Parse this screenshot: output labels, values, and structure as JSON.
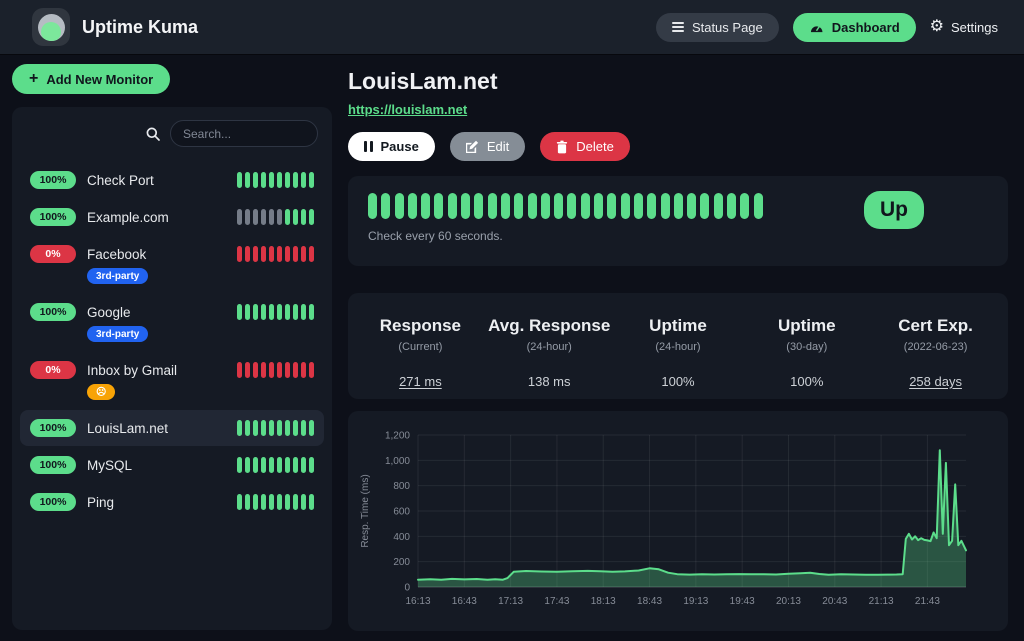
{
  "navbar": {
    "brand": "Uptime Kuma",
    "buttons": {
      "status_page": "Status Page",
      "dashboard": "Dashboard",
      "settings": "Settings"
    }
  },
  "sidebar": {
    "add_monitor": "Add New Monitor",
    "search_placeholder": "Search...",
    "monitors": [
      {
        "name": "Check Port",
        "uptime": "100%",
        "status": "up",
        "selected": false,
        "tags": [],
        "bars": [
          "up",
          "up",
          "up",
          "up",
          "up",
          "up",
          "up",
          "up",
          "up",
          "up"
        ]
      },
      {
        "name": "Example.com",
        "uptime": "100%",
        "status": "up",
        "selected": false,
        "tags": [],
        "bars": [
          "empty",
          "empty",
          "empty",
          "empty",
          "empty",
          "empty",
          "up",
          "up",
          "up",
          "up"
        ]
      },
      {
        "name": "Facebook",
        "uptime": "0%",
        "status": "down",
        "selected": false,
        "tags": [
          {
            "label": "3rd-party",
            "color": "#2163f0",
            "name": "third-party-tag"
          }
        ],
        "bars": [
          "down",
          "down",
          "down",
          "down",
          "down",
          "down",
          "down",
          "down",
          "down",
          "down"
        ]
      },
      {
        "name": "Google",
        "uptime": "100%",
        "status": "up",
        "selected": false,
        "tags": [
          {
            "label": "3rd-party",
            "color": "#2163f0",
            "name": "third-party-tag"
          }
        ],
        "bars": [
          "up",
          "up",
          "up",
          "up",
          "up",
          "up",
          "up",
          "up",
          "up",
          "up"
        ]
      },
      {
        "name": "Inbox by Gmail",
        "uptime": "0%",
        "status": "down",
        "selected": false,
        "tags": [
          {
            "label": "☹",
            "color": "#f8a306",
            "name": "crying-face-emoji-tag"
          }
        ],
        "bars": [
          "down",
          "down",
          "down",
          "down",
          "down",
          "down",
          "down",
          "down",
          "down",
          "down"
        ]
      },
      {
        "name": "LouisLam.net",
        "uptime": "100%",
        "status": "up",
        "selected": true,
        "tags": [],
        "bars": [
          "up",
          "up",
          "up",
          "up",
          "up",
          "up",
          "up",
          "up",
          "up",
          "up"
        ]
      },
      {
        "name": "MySQL",
        "uptime": "100%",
        "status": "up",
        "selected": false,
        "tags": [],
        "bars": [
          "up",
          "up",
          "up",
          "up",
          "up",
          "up",
          "up",
          "up",
          "up",
          "up"
        ]
      },
      {
        "name": "Ping",
        "uptime": "100%",
        "status": "up",
        "selected": false,
        "tags": [],
        "bars": [
          "up",
          "up",
          "up",
          "up",
          "up",
          "up",
          "up",
          "up",
          "up",
          "up"
        ]
      }
    ]
  },
  "detail": {
    "title": "LouisLam.net",
    "url": "https://louislam.net",
    "actions": {
      "pause": "Pause",
      "edit": "Edit",
      "delete": "Delete"
    },
    "heartbeat": {
      "bar_count": 30,
      "status": "up",
      "note": "Check every 60 seconds.",
      "status_badge": "Up"
    },
    "stats": [
      {
        "title": "Response",
        "subtitle": "(Current)",
        "value": "271 ms",
        "underlined": true
      },
      {
        "title": "Avg. Response",
        "subtitle": "(24-hour)",
        "value": "138 ms",
        "underlined": false
      },
      {
        "title": "Uptime",
        "subtitle": "(24-hour)",
        "value": "100%",
        "underlined": false
      },
      {
        "title": "Uptime",
        "subtitle": "(30-day)",
        "value": "100%",
        "underlined": false
      },
      {
        "title": "Cert Exp.",
        "subtitle": "(2022-06-23)",
        "value": "258 days",
        "underlined": true
      }
    ]
  },
  "chart_data": {
    "type": "area",
    "title": "",
    "xlabel": "",
    "ylabel": "Resp. Time (ms)",
    "ylim": [
      0,
      1200
    ],
    "yticks": [
      0,
      200,
      400,
      600,
      800,
      1000,
      1200
    ],
    "ytick_labels": [
      "0",
      "200",
      "400",
      "600",
      "800",
      "1,000",
      "1,200"
    ],
    "xtick_labels": [
      "16:13",
      "16:43",
      "17:13",
      "17:43",
      "18:13",
      "18:43",
      "19:13",
      "19:43",
      "20:13",
      "20:43",
      "21:13",
      "21:43"
    ],
    "xtick_minutes": [
      0,
      30,
      60,
      90,
      120,
      150,
      180,
      210,
      240,
      270,
      300,
      330
    ],
    "x_minutes_range": [
      0,
      355
    ],
    "grid": true,
    "legend_position": "none",
    "series": [
      {
        "name": "Resp. Time (ms)",
        "color": "#5cdd8b",
        "fill": "rgba(92,221,139,0.30)",
        "points": [
          [
            0,
            58
          ],
          [
            8,
            61
          ],
          [
            15,
            57
          ],
          [
            22,
            64
          ],
          [
            30,
            60
          ],
          [
            38,
            63
          ],
          [
            45,
            58
          ],
          [
            50,
            61
          ],
          [
            55,
            58
          ],
          [
            58,
            70
          ],
          [
            62,
            120
          ],
          [
            70,
            126
          ],
          [
            80,
            122
          ],
          [
            90,
            121
          ],
          [
            100,
            124
          ],
          [
            110,
            127
          ],
          [
            118,
            125
          ],
          [
            126,
            120
          ],
          [
            134,
            123
          ],
          [
            143,
            130
          ],
          [
            150,
            148
          ],
          [
            156,
            140
          ],
          [
            162,
            113
          ],
          [
            168,
            101
          ],
          [
            176,
            98
          ],
          [
            184,
            101
          ],
          [
            192,
            99
          ],
          [
            200,
            100
          ],
          [
            208,
            102
          ],
          [
            216,
            100
          ],
          [
            224,
            101
          ],
          [
            232,
            99
          ],
          [
            240,
            104
          ],
          [
            248,
            108
          ],
          [
            254,
            112
          ],
          [
            260,
            103
          ],
          [
            266,
            97
          ],
          [
            274,
            100
          ],
          [
            282,
            99
          ],
          [
            290,
            97
          ],
          [
            298,
            96
          ],
          [
            304,
            98
          ],
          [
            310,
            99
          ],
          [
            314,
            101
          ],
          [
            316,
            380
          ],
          [
            318,
            420
          ],
          [
            320,
            375
          ],
          [
            322,
            400
          ],
          [
            324,
            370
          ],
          [
            326,
            385
          ],
          [
            328,
            372
          ],
          [
            330,
            368
          ],
          [
            332,
            362
          ],
          [
            334,
            430
          ],
          [
            336,
            385
          ],
          [
            338,
            1080
          ],
          [
            340,
            420
          ],
          [
            342,
            980
          ],
          [
            344,
            330
          ],
          [
            346,
            365
          ],
          [
            348,
            810
          ],
          [
            350,
            330
          ],
          [
            352,
            365
          ],
          [
            355,
            290
          ]
        ]
      }
    ]
  },
  "colors": {
    "primary_green": "#5cdd8b",
    "danger_red": "#dc3545",
    "tag_blue": "#2163f0",
    "tag_orange": "#f8a306",
    "background": "#0d1019",
    "card": "#151a24",
    "navbar": "#1b212b",
    "muted_text": "#99a0ab"
  }
}
